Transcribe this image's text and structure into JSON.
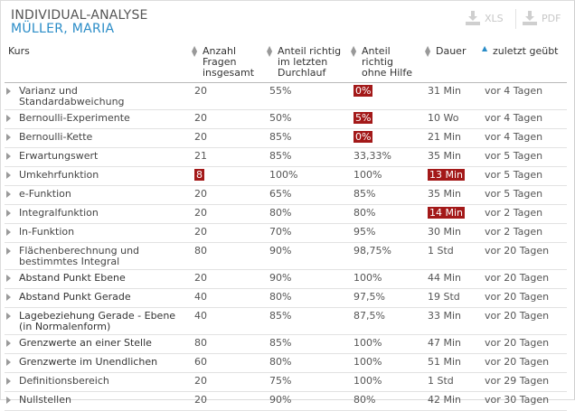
{
  "header": {
    "title": "INDIVIDUAL-ANALYSE",
    "student": "MÜLLER, MARIA"
  },
  "export": {
    "xls_label": "XLS",
    "pdf_label": "PDF"
  },
  "columns": {
    "course": "Kurs",
    "questions": [
      "Anzahl",
      "Fragen",
      "insgesamt"
    ],
    "last_run": [
      "Anteil richtig",
      "im letzten",
      "Durchlauf"
    ],
    "no_help": [
      "Anteil",
      "richtig",
      "ohne Hilfe"
    ],
    "duration": "Dauer",
    "last_practiced": "zuletzt geübt"
  },
  "rows": [
    {
      "course": [
        "Varianz und",
        "Standardabweichung"
      ],
      "questions": "20",
      "last_run": "55%",
      "no_help": "0%",
      "duration": "31 Min",
      "last_practiced": "vor 4 Tagen",
      "flag": [
        "no_help"
      ]
    },
    {
      "course": [
        "Bernoulli-Experimente"
      ],
      "questions": "20",
      "last_run": "50%",
      "no_help": "5%",
      "duration": "10 Wo",
      "last_practiced": "vor 4 Tagen",
      "flag": [
        "no_help"
      ]
    },
    {
      "course": [
        "Bernoulli-Kette"
      ],
      "questions": "20",
      "last_run": "85%",
      "no_help": "0%",
      "duration": "21 Min",
      "last_practiced": "vor 4 Tagen",
      "flag": [
        "no_help"
      ]
    },
    {
      "course": [
        "Erwartungswert"
      ],
      "questions": "21",
      "last_run": "85%",
      "no_help": "33,33%",
      "duration": "35 Min",
      "last_practiced": "vor 5 Tagen",
      "flag": []
    },
    {
      "course": [
        "Umkehrfunktion"
      ],
      "questions": "8",
      "last_run": "100%",
      "no_help": "100%",
      "duration": "13 Min",
      "last_practiced": "vor 5 Tagen",
      "flag": [
        "questions",
        "duration"
      ]
    },
    {
      "course": [
        "e-Funktion"
      ],
      "questions": "20",
      "last_run": "65%",
      "no_help": "85%",
      "duration": "35 Min",
      "last_practiced": "vor 5 Tagen",
      "flag": []
    },
    {
      "course": [
        "Integralfunktion"
      ],
      "questions": "20",
      "last_run": "80%",
      "no_help": "80%",
      "duration": "14 Min",
      "last_practiced": "vor 2 Tagen",
      "flag": [
        "duration"
      ]
    },
    {
      "course": [
        "ln-Funktion"
      ],
      "questions": "20",
      "last_run": "70%",
      "no_help": "95%",
      "duration": "30 Min",
      "last_practiced": "vor 2 Tagen",
      "flag": []
    },
    {
      "course": [
        "Flächenberechnung und",
        "bestimmtes Integral"
      ],
      "questions": "80",
      "last_run": "90%",
      "no_help": "98,75%",
      "duration": "1 Std",
      "last_practiced": "vor 20 Tagen",
      "flag": []
    },
    {
      "course": [
        "Abstand Punkt Ebene"
      ],
      "questions": "20",
      "last_run": "90%",
      "no_help": "100%",
      "duration": "44 Min",
      "last_practiced": "vor 20 Tagen",
      "flag": [],
      "bold": true
    },
    {
      "course": [
        "Abstand Punkt Gerade"
      ],
      "questions": "40",
      "last_run": "80%",
      "no_help": "97,5%",
      "duration": "19 Std",
      "last_practiced": "vor 20 Tagen",
      "flag": [],
      "bold": true
    },
    {
      "course": [
        "Lagebeziehung Gerade - Ebene",
        "(in Normalenform)"
      ],
      "questions": "40",
      "last_run": "85%",
      "no_help": "87,5%",
      "duration": "33 Min",
      "last_practiced": "vor 20 Tagen",
      "flag": [],
      "bold": true
    },
    {
      "course": [
        "Grenzwerte an einer Stelle"
      ],
      "questions": "80",
      "last_run": "85%",
      "no_help": "100%",
      "duration": "47 Min",
      "last_practiced": "vor 20 Tagen",
      "flag": [],
      "bold": true
    },
    {
      "course": [
        "Grenzwerte im Unendlichen"
      ],
      "questions": "60",
      "last_run": "80%",
      "no_help": "100%",
      "duration": "51 Min",
      "last_practiced": "vor 20 Tagen",
      "flag": [],
      "bold": true
    },
    {
      "course": [
        "Definitionsbereich"
      ],
      "questions": "20",
      "last_run": "75%",
      "no_help": "100%",
      "duration": "1 Std",
      "last_practiced": "vor 29 Tagen",
      "flag": []
    },
    {
      "course": [
        "Nullstellen"
      ],
      "questions": "20",
      "last_run": "90%",
      "no_help": "80%",
      "duration": "42 Min",
      "last_practiced": "vor 30 Tagen",
      "flag": []
    }
  ],
  "colors": {
    "accent": "#2a8cc7",
    "flag": "#a31919"
  }
}
